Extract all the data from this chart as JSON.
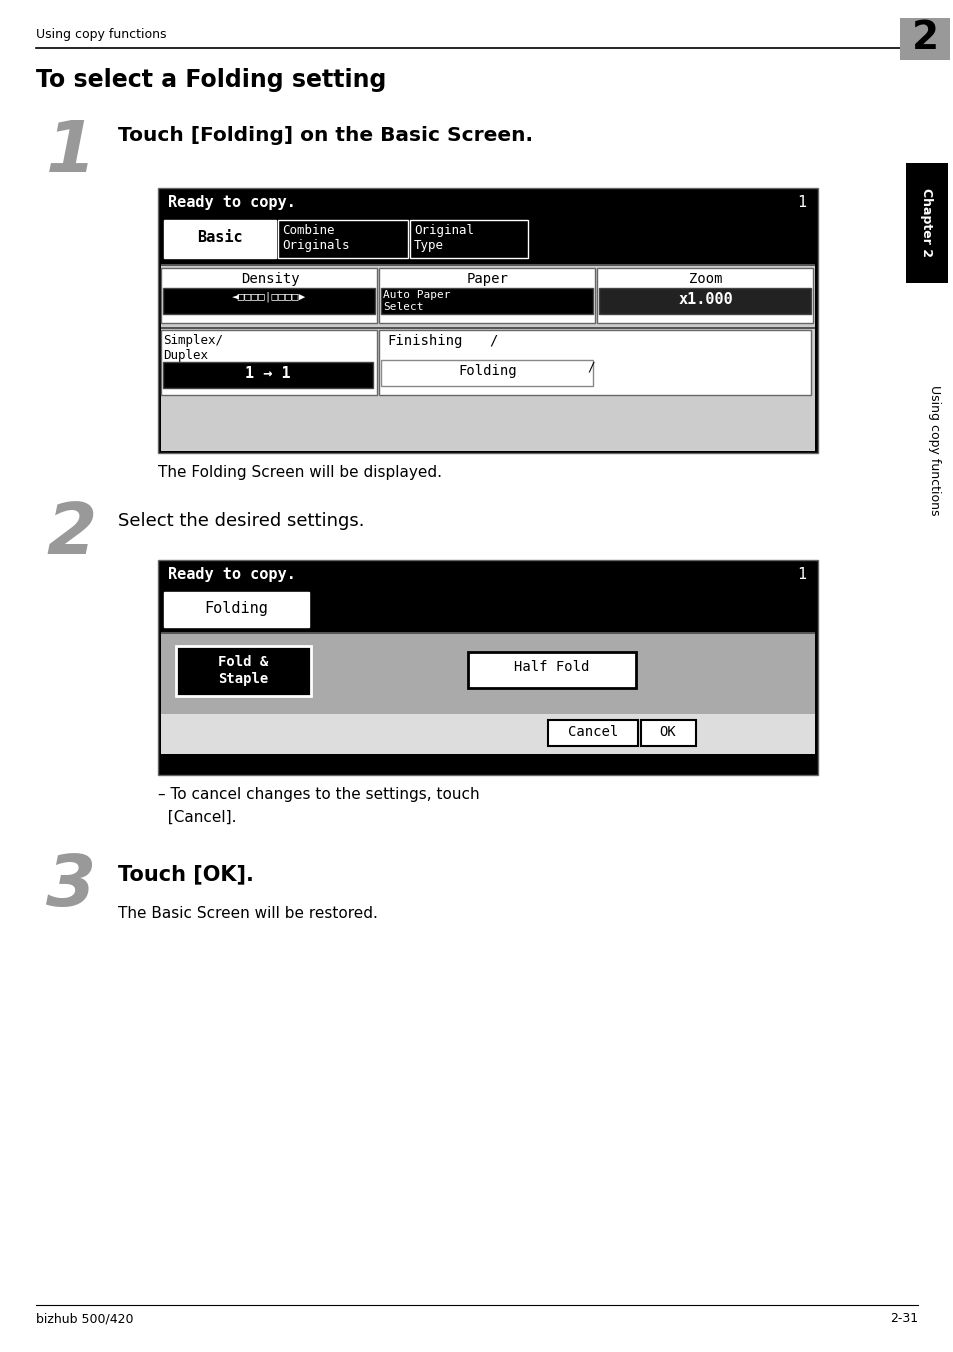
{
  "page_title": "To select a Folding setting",
  "header_text": "Using copy functions",
  "header_chapter": "2",
  "sidebar_chapter": "Chapter 2",
  "sidebar_text": "Using copy functions",
  "step1_num": "1",
  "step1_title": "Touch [Folding] on the Basic Screen.",
  "step1_desc": "The Folding Screen will be displayed.",
  "step2_num": "2",
  "step2_title": "Select the desired settings.",
  "step2_note_line1": "– To cancel changes to the settings, touch",
  "step2_note_line2": "  [Cancel].",
  "step3_num": "3",
  "step3_title": "Touch [OK].",
  "step3_desc": "The Basic Screen will be restored.",
  "footer_left": "bizhub 500/420",
  "footer_right": "2-31",
  "bg_color": "#ffffff"
}
